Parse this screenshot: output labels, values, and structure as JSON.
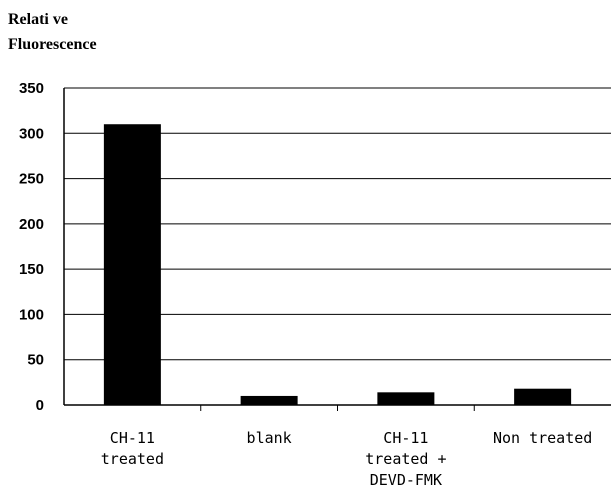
{
  "chart_data": {
    "type": "bar",
    "ylabel": [
      "Relati ve",
      "Fluorescence"
    ],
    "xlabel": "",
    "title": "",
    "categories": [
      [
        "CH-11",
        "treated"
      ],
      [
        "blank"
      ],
      [
        "CH-11",
        "treated +",
        "DEVD-FMK"
      ],
      [
        "Non treated"
      ]
    ],
    "values": [
      310,
      10,
      14,
      18
    ],
    "ylim": [
      0,
      350
    ],
    "yticks": [
      0,
      50,
      100,
      150,
      200,
      250,
      300,
      350
    ],
    "grid": true,
    "bar_color": "#000000"
  }
}
